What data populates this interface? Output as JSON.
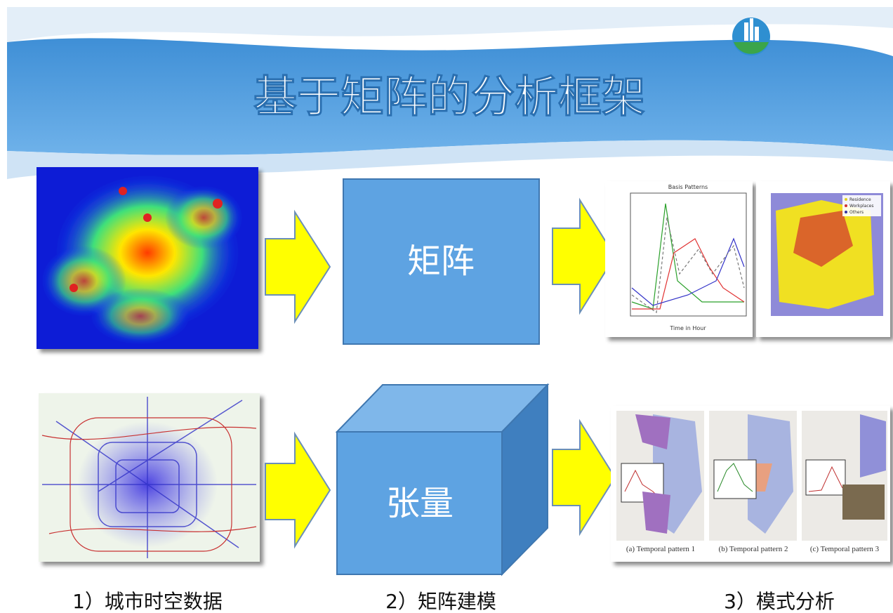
{
  "header": {
    "title": "基于矩阵的分析框架"
  },
  "boxes": {
    "matrix": "矩阵",
    "tensor": "张量"
  },
  "steps": [
    "1）城市时空数据",
    "2）矩阵建模",
    "3）模式分析"
  ],
  "figures": {
    "basis_title": "Basis Patterns",
    "basis_xlabel": "Time in Hour",
    "area_legend": [
      "Residence",
      "Workplaces",
      "Others"
    ],
    "temporal": [
      "(a) Temporal pattern 1",
      "(b) Temporal pattern 2",
      "(c) Temporal pattern 3"
    ]
  }
}
